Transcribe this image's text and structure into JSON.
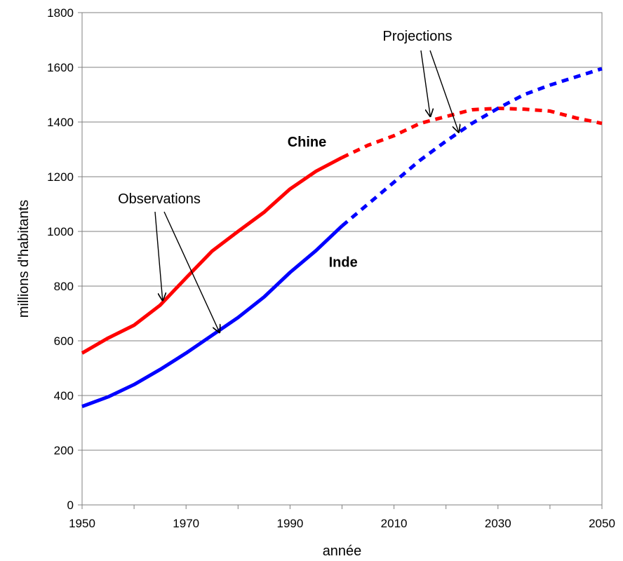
{
  "chart_data": {
    "type": "line",
    "title": "",
    "xlabel": "année",
    "ylabel": "millions d'habitants",
    "xlim": [
      1950,
      2050
    ],
    "ylim": [
      0,
      1800
    ],
    "xticks": [
      1950,
      1970,
      1990,
      2010,
      2030,
      2050
    ],
    "yticks": [
      0,
      200,
      400,
      600,
      800,
      1000,
      1200,
      1400,
      1600,
      1800
    ],
    "grid": "horizontal",
    "series": [
      {
        "name": "Chine",
        "color": "#ff0000",
        "observed": {
          "x": [
            1950,
            1955,
            1960,
            1965,
            1970,
            1975,
            1980,
            1985,
            1990,
            1995,
            2000
          ],
          "y": [
            555,
            610,
            657,
            730,
            830,
            928,
            1000,
            1070,
            1155,
            1220,
            1270
          ]
        },
        "projected": {
          "x": [
            2000,
            2005,
            2010,
            2015,
            2020,
            2025,
            2030,
            2035,
            2040,
            2045,
            2050
          ],
          "y": [
            1270,
            1315,
            1350,
            1395,
            1420,
            1445,
            1450,
            1447,
            1440,
            1415,
            1395
          ]
        }
      },
      {
        "name": "Inde",
        "color": "#0000ff",
        "observed": {
          "x": [
            1950,
            1955,
            1960,
            1965,
            1970,
            1975,
            1980,
            1985,
            1990,
            1995,
            2000
          ],
          "y": [
            360,
            395,
            440,
            495,
            555,
            620,
            685,
            760,
            850,
            930,
            1020
          ]
        },
        "projected": {
          "x": [
            2000,
            2005,
            2010,
            2015,
            2020,
            2025,
            2030,
            2035,
            2040,
            2045,
            2050
          ],
          "y": [
            1020,
            1100,
            1180,
            1260,
            1330,
            1395,
            1450,
            1500,
            1535,
            1565,
            1595
          ]
        }
      }
    ],
    "annotations": [
      {
        "text": "Observations",
        "arrows_to": [
          {
            "x": 1965.5,
            "y": 745
          },
          {
            "x": 1976.5,
            "y": 628
          }
        ]
      },
      {
        "text": "Projections",
        "arrows_to": [
          {
            "x": 2017,
            "y": 1418
          },
          {
            "x": 2022.5,
            "y": 1360
          }
        ]
      }
    ]
  }
}
